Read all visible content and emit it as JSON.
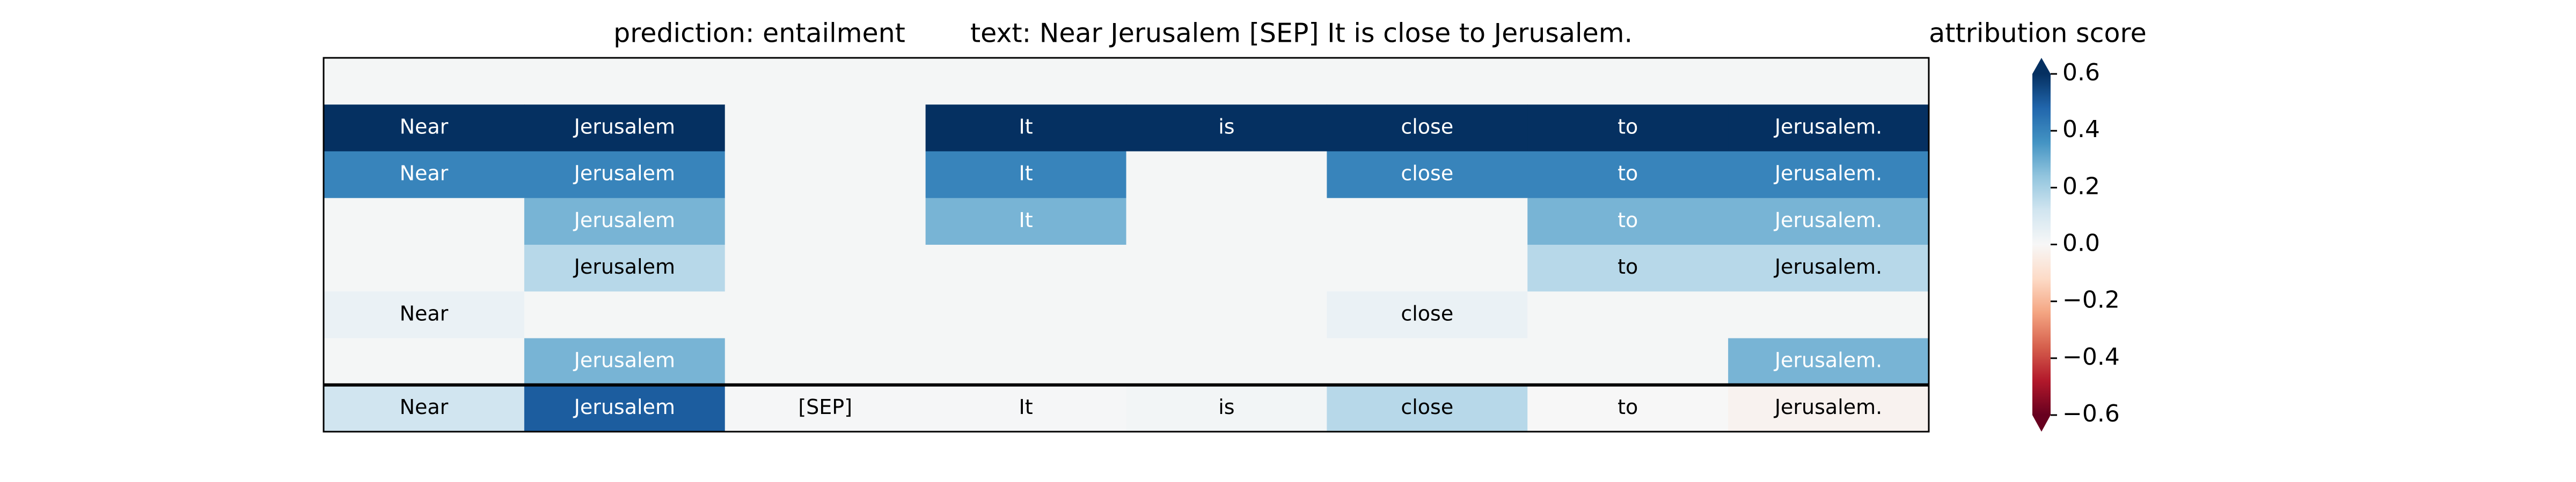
{
  "chart_data": {
    "type": "heatmap",
    "prediction_title": "prediction:  entailment",
    "text_title": "text:  Near Jerusalem [SEP] It is close to Jerusalem.",
    "colorbar_label": "attribution score",
    "cell_labels": [
      [
        null,
        null,
        null,
        null,
        null,
        null,
        null,
        null
      ],
      [
        "Near",
        "Jerusalem",
        null,
        "It",
        "is",
        "close",
        "to",
        "Jerusalem."
      ],
      [
        "Near",
        "Jerusalem",
        null,
        "It",
        null,
        "close",
        "to",
        "Jerusalem."
      ],
      [
        null,
        "Jerusalem",
        null,
        "It",
        null,
        null,
        "to",
        "Jerusalem."
      ],
      [
        null,
        "Jerusalem",
        null,
        null,
        null,
        null,
        "to",
        "Jerusalem."
      ],
      [
        "Near",
        null,
        null,
        null,
        null,
        "close",
        null,
        null
      ],
      [
        null,
        "Jerusalem",
        null,
        null,
        null,
        null,
        null,
        "Jerusalem."
      ],
      [
        "Near",
        "Jerusalem",
        "[SEP]",
        "It",
        "is",
        "close",
        "to",
        "Jerusalem."
      ]
    ],
    "values": [
      [
        0.01,
        0.01,
        0.01,
        0.01,
        0.01,
        0.01,
        0.01,
        0.01
      ],
      [
        0.6,
        0.6,
        0.01,
        0.6,
        0.6,
        0.6,
        0.6,
        0.6
      ],
      [
        0.4,
        0.4,
        0.01,
        0.4,
        0.01,
        0.4,
        0.4,
        0.4
      ],
      [
        0.01,
        0.28,
        0.01,
        0.28,
        0.01,
        0.01,
        0.28,
        0.28
      ],
      [
        0.01,
        0.17,
        0.01,
        0.01,
        0.01,
        0.01,
        0.17,
        0.17
      ],
      [
        0.04,
        0.01,
        0.01,
        0.01,
        0.01,
        0.04,
        0.01,
        0.01
      ],
      [
        0.01,
        0.28,
        0.01,
        0.01,
        0.01,
        0.01,
        0.01,
        0.28
      ],
      [
        0.12,
        0.5,
        0.005,
        0.005,
        0.015,
        0.17,
        0.0,
        -0.02
      ]
    ],
    "clim": [
      -0.6,
      0.6
    ],
    "cticks": [
      0.6,
      0.4,
      0.2,
      {
        "value": 0,
        "label": "0.0"
      },
      {
        "value": -0.2,
        "label": "−0.2"
      },
      {
        "value": -0.4,
        "label": "−0.4"
      },
      {
        "value": -0.6,
        "label": "−0.6"
      }
    ],
    "colormap": [
      "#67001f",
      "#b2182b",
      "#d6604d",
      "#f4a582",
      "#fddbc7",
      "#f7f7f7",
      "#d1e5f0",
      "#92c5de",
      "#4393c3",
      "#2166ac",
      "#053061"
    ]
  }
}
